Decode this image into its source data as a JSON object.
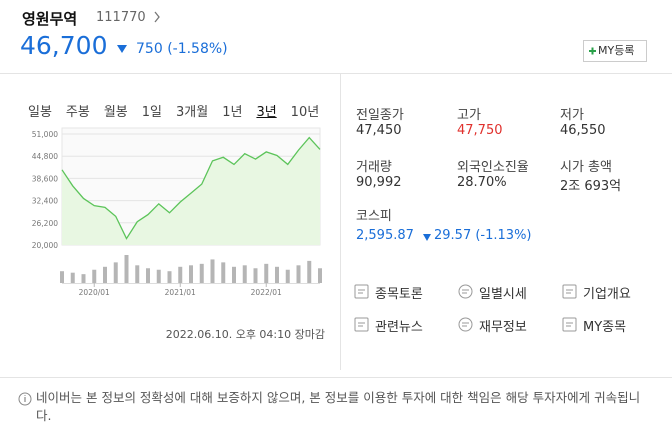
{
  "header": {
    "name": "영원무역",
    "code": "111770",
    "price": "46,700",
    "change": "750",
    "change_rate": "(-1.58%)",
    "my_button": "MY등록"
  },
  "periods": [
    "일봉",
    "주봉",
    "월봉",
    "1일",
    "3개월",
    "1년",
    "3년",
    "10년"
  ],
  "chart_data": [
    {
      "type": "line",
      "color": "#5cc45a",
      "fill": "#e8f7e2",
      "categories": [
        null,
        null,
        null,
        "2020/01",
        null,
        null,
        null,
        null,
        null,
        null,
        null,
        "2021/01",
        null,
        null,
        null,
        null,
        null,
        null,
        null,
        "2022/01",
        null,
        null,
        null,
        null,
        null
      ],
      "values": [
        41000,
        36500,
        33000,
        31000,
        30500,
        28000,
        21800,
        26500,
        28500,
        31500,
        29000,
        32000,
        34500,
        37000,
        43500,
        44500,
        42500,
        45500,
        44000,
        46000,
        45000,
        42500,
        46500,
        50000,
        46700
      ],
      "ylim": [
        20000,
        51000
      ],
      "yticks": [
        {
          "value": 20000,
          "label": "20,000"
        },
        {
          "value": 26200,
          "label": "26,200"
        },
        {
          "value": 32400,
          "label": "32,400"
        },
        {
          "value": 38600,
          "label": "38,600"
        },
        {
          "value": 44800,
          "label": "44,800"
        },
        {
          "value": 51000,
          "label": "51,000"
        }
      ],
      "grid": true
    },
    {
      "type": "bar",
      "color": "#b5b5b5",
      "values": [
        40,
        35,
        30,
        45,
        55,
        70,
        95,
        60,
        50,
        45,
        40,
        55,
        60,
        65,
        80,
        70,
        55,
        60,
        50,
        65,
        55,
        45,
        60,
        75,
        50
      ]
    }
  ],
  "date": "2022.06.10. 오후 04:10 장마감",
  "stats": [
    {
      "label": "전일종가",
      "value": "47,450"
    },
    {
      "label": "고가",
      "value": "47,750"
    },
    {
      "label": "저가",
      "value": "46,550"
    },
    {
      "label": "거래량",
      "value": "90,992"
    },
    {
      "label": "외국인소진율",
      "value": "28.70%"
    },
    {
      "label": "시가 총액",
      "value": "2조 693억"
    }
  ],
  "index": {
    "label": "코스피",
    "value": "2,595.87",
    "change": "29.57",
    "change_rate": "(-1.13%)"
  },
  "links": [
    "종목토론",
    "일별시세",
    "기업개요",
    "관련뉴스",
    "재무정보",
    "MY종목"
  ],
  "notice": "네이버는 본 정보의 정확성에 대해 보증하지 않으며, 본 정보를 이용한 투자에 대한 책임은 해당 투자자에게 귀속됩니다."
}
